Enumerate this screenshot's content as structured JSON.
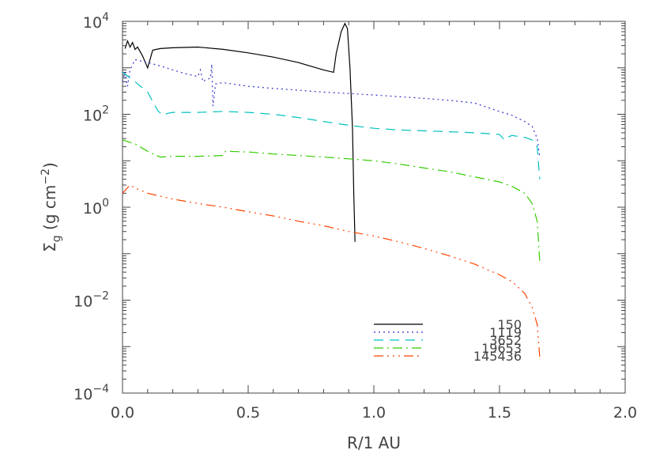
{
  "chart_data": {
    "type": "line",
    "title": "",
    "xlabel": "R/1 AU",
    "ylabel": "Σg (g cm⁻²)",
    "ylabel_parts": {
      "symbol": "Σ",
      "sub": "g",
      "open": " (g cm",
      "sup": "−2",
      "close": ")"
    },
    "xlim": [
      0.0,
      2.0
    ],
    "ylim": [
      0.0001,
      10000
    ],
    "yscale": "log",
    "grid": false,
    "legend": "bottom-center",
    "x_ticks": [
      "0.0",
      "0.5",
      "1.0",
      "1.5",
      "2.0"
    ],
    "y_ticks": [
      {
        "value": 0.0001,
        "base": "10",
        "exp": "−4"
      },
      {
        "value": 0.01,
        "base": "10",
        "exp": "−2"
      },
      {
        "value": 1,
        "base": "10",
        "exp": "0"
      },
      {
        "value": 100,
        "base": "10",
        "exp": "2"
      },
      {
        "value": 10000,
        "base": "10",
        "exp": "4"
      }
    ],
    "series": [
      {
        "name": "150",
        "color": "#000000",
        "dash": "",
        "points": [
          [
            0.01,
            2600
          ],
          [
            0.02,
            3800
          ],
          [
            0.03,
            2800
          ],
          [
            0.04,
            3500
          ],
          [
            0.05,
            2500
          ],
          [
            0.06,
            2800
          ],
          [
            0.08,
            1800
          ],
          [
            0.1,
            1000
          ],
          [
            0.12,
            2400
          ],
          [
            0.15,
            2600
          ],
          [
            0.2,
            2700
          ],
          [
            0.3,
            2800
          ],
          [
            0.4,
            2500
          ],
          [
            0.5,
            2100
          ],
          [
            0.6,
            1700
          ],
          [
            0.7,
            1300
          ],
          [
            0.8,
            900
          ],
          [
            0.84,
            800
          ],
          [
            0.85,
            2000
          ],
          [
            0.87,
            6000
          ],
          [
            0.885,
            9000
          ],
          [
            0.895,
            7000
          ],
          [
            0.905,
            1000
          ],
          [
            0.915,
            50
          ],
          [
            0.92,
            2
          ],
          [
            0.925,
            0.18
          ]
        ]
      },
      {
        "name": "1119",
        "color": "#3333cc",
        "dash": "2,4",
        "points": [
          [
            0.0,
            500
          ],
          [
            0.01,
            800
          ],
          [
            0.02,
            400
          ],
          [
            0.03,
            900
          ],
          [
            0.05,
            1500
          ],
          [
            0.1,
            1300
          ],
          [
            0.15,
            1100
          ],
          [
            0.2,
            900
          ],
          [
            0.25,
            750
          ],
          [
            0.3,
            650
          ],
          [
            0.31,
            900
          ],
          [
            0.32,
            500
          ],
          [
            0.33,
            550
          ],
          [
            0.35,
            600
          ],
          [
            0.355,
            1200
          ],
          [
            0.36,
            150
          ],
          [
            0.37,
            450
          ],
          [
            0.4,
            480
          ],
          [
            0.5,
            400
          ],
          [
            0.6,
            360
          ],
          [
            0.7,
            330
          ],
          [
            0.8,
            300
          ],
          [
            0.9,
            280
          ],
          [
            1.0,
            260
          ],
          [
            1.1,
            240
          ],
          [
            1.2,
            220
          ],
          [
            1.3,
            200
          ],
          [
            1.4,
            175
          ],
          [
            1.5,
            115
          ],
          [
            1.55,
            95
          ],
          [
            1.6,
            70
          ],
          [
            1.63,
            55
          ],
          [
            1.65,
            30
          ],
          [
            1.66,
            12
          ]
        ]
      },
      {
        "name": "3652",
        "color": "#00c0c0",
        "dash": "12,8",
        "points": [
          [
            0.0,
            800
          ],
          [
            0.05,
            500
          ],
          [
            0.1,
            300
          ],
          [
            0.14,
            120
          ],
          [
            0.16,
            95
          ],
          [
            0.18,
            105
          ],
          [
            0.2,
            110
          ],
          [
            0.3,
            110
          ],
          [
            0.4,
            115
          ],
          [
            0.5,
            110
          ],
          [
            0.6,
            100
          ],
          [
            0.7,
            85
          ],
          [
            0.8,
            70
          ],
          [
            0.9,
            58
          ],
          [
            1.0,
            50
          ],
          [
            1.1,
            46
          ],
          [
            1.2,
            44
          ],
          [
            1.3,
            42
          ],
          [
            1.4,
            40
          ],
          [
            1.5,
            37
          ],
          [
            1.52,
            28
          ],
          [
            1.53,
            32
          ],
          [
            1.55,
            35
          ],
          [
            1.6,
            32
          ],
          [
            1.63,
            28
          ],
          [
            1.65,
            20
          ],
          [
            1.66,
            4
          ]
        ]
      },
      {
        "name": "19653",
        "color": "#33cc00",
        "dash": "12,5,2,5",
        "points": [
          [
            0.0,
            28
          ],
          [
            0.05,
            23
          ],
          [
            0.1,
            16
          ],
          [
            0.15,
            12
          ],
          [
            0.2,
            12.5
          ],
          [
            0.3,
            12.5
          ],
          [
            0.4,
            13
          ],
          [
            0.41,
            16
          ],
          [
            0.5,
            15.5
          ],
          [
            0.6,
            14
          ],
          [
            0.7,
            13
          ],
          [
            0.8,
            12
          ],
          [
            0.9,
            11
          ],
          [
            1.0,
            10
          ],
          [
            1.1,
            8.5
          ],
          [
            1.2,
            7
          ],
          [
            1.3,
            5.8
          ],
          [
            1.4,
            4.5
          ],
          [
            1.5,
            3.5
          ],
          [
            1.55,
            2.8
          ],
          [
            1.6,
            2
          ],
          [
            1.63,
            1.2
          ],
          [
            1.65,
            0.5
          ],
          [
            1.66,
            0.07
          ]
        ]
      },
      {
        "name": "145436",
        "color": "#ff4400",
        "dash": "12,5,2,5,2,5,2,5",
        "points": [
          [
            0.0,
            2.0
          ],
          [
            0.03,
            3.0
          ],
          [
            0.05,
            2.6
          ],
          [
            0.1,
            2.0
          ],
          [
            0.2,
            1.5
          ],
          [
            0.3,
            1.2
          ],
          [
            0.4,
            1.0
          ],
          [
            0.5,
            0.8
          ],
          [
            0.6,
            0.65
          ],
          [
            0.7,
            0.5
          ],
          [
            0.8,
            0.4
          ],
          [
            0.9,
            0.3
          ],
          [
            1.0,
            0.24
          ],
          [
            1.1,
            0.18
          ],
          [
            1.2,
            0.13
          ],
          [
            1.3,
            0.09
          ],
          [
            1.4,
            0.06
          ],
          [
            1.5,
            0.035
          ],
          [
            1.55,
            0.025
          ],
          [
            1.6,
            0.014
          ],
          [
            1.63,
            0.007
          ],
          [
            1.65,
            0.003
          ],
          [
            1.66,
            0.0006
          ]
        ]
      }
    ]
  }
}
